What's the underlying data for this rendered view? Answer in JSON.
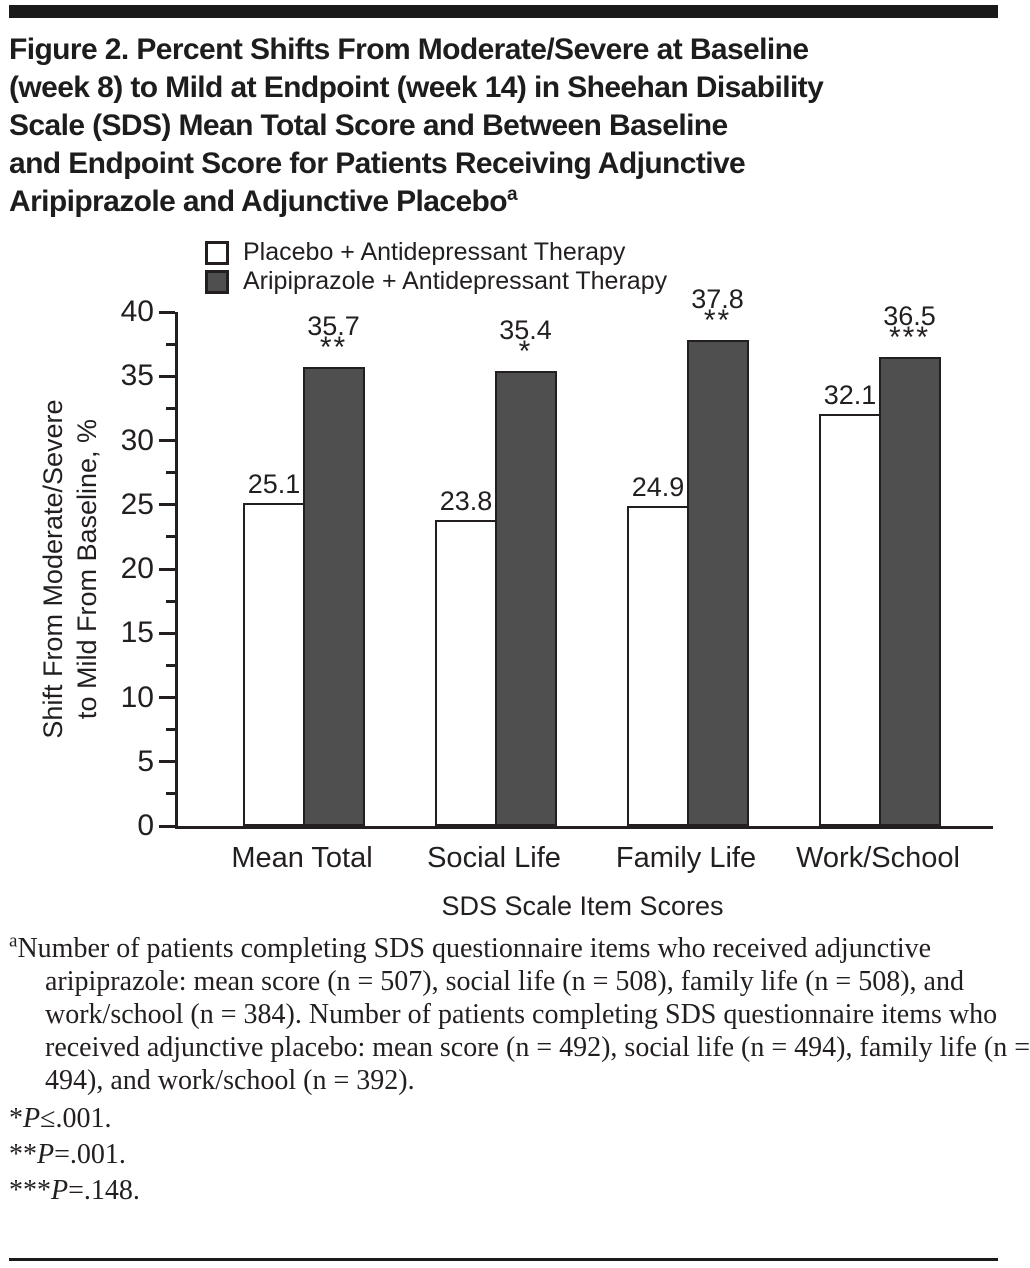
{
  "figure": {
    "title_lines": [
      "Figure 2. Percent Shifts From Moderate/Severe at Baseline",
      "(week 8) to Mild at Endpoint (week 14) in Sheehan Disability",
      "Scale (SDS) Mean Total Score and Between Baseline",
      "and Endpoint Score for Patients Receiving Adjunctive",
      "Aripiprazole and Adjunctive Placebo"
    ],
    "title_superscript": "a"
  },
  "chart_data": {
    "type": "bar",
    "title": "",
    "categories": [
      "Mean Total",
      "Social Life",
      "Family Life",
      "Work/School"
    ],
    "series": [
      {
        "name": "Placebo + Antidepressant Therapy",
        "color": "#ffffff",
        "values": [
          25.1,
          23.8,
          24.9,
          32.1
        ],
        "annotations": [
          "",
          "",
          "",
          ""
        ]
      },
      {
        "name": "Aripiprazole + Antidepressant Therapy",
        "color": "#4f4f4f",
        "values": [
          35.7,
          35.4,
          37.8,
          36.5
        ],
        "annotations": [
          "**",
          "*",
          "**",
          "***"
        ]
      }
    ],
    "xlabel": "SDS Scale Item Scores",
    "ylabel_lines": [
      "Shift From Moderate/Severe",
      "to Mild From Baseline, %"
    ],
    "ylim": [
      0,
      40
    ],
    "ytick_interval": 5,
    "yminor_interval": 2.5,
    "grid": false,
    "legend_position": "top-left"
  },
  "footnote": {
    "marker": "a",
    "text": "Number of patients completing SDS questionnaire items who received adjunctive aripiprazole: mean score (n = 507), social life (n = 508), family life (n = 508), and work/school (n = 384). Number of patients completing SDS questionnaire items who received adjunctive placebo: mean score (n = 492), social life (n = 494), family life (n = 494), and work/school (n = 392)."
  },
  "pvalues": [
    {
      "stars": "*",
      "symbol": "P",
      "condition": "≤.001."
    },
    {
      "stars": "**",
      "symbol": "P",
      "condition": "=.001."
    },
    {
      "stars": "***",
      "symbol": "P",
      "condition": "=.148."
    }
  ]
}
